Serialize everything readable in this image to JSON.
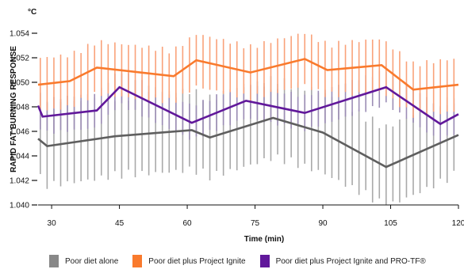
{
  "chart_data": {
    "type": "line",
    "ylabel": "RAPID FAT BURNING RESPONSE",
    "yunit": "°C",
    "xlabel": "Time (min)",
    "xlim": [
      27,
      120
    ],
    "ylim": [
      1.04,
      1.054
    ],
    "x_ticks": [
      "30",
      "45",
      "60",
      "75",
      "90",
      "105",
      "120"
    ],
    "y_ticks": [
      "1.040",
      "1.042",
      "1.044",
      "1.046",
      "1.048",
      "1.050",
      "1.052",
      "1.054"
    ],
    "x_tick_values": [
      30,
      45,
      60,
      75,
      90,
      105,
      120
    ],
    "y_tick_values": [
      1.04,
      1.042,
      1.044,
      1.046,
      1.048,
      1.05,
      1.052,
      1.054
    ],
    "error_bar_interval_min": 1.5,
    "error_bar_halfwidth": [
      0.0035,
      0.0023,
      0.0015
    ],
    "series": [
      {
        "name": "Poor diet alone",
        "color": "#5f5f5f",
        "bar_color": "#a9a9a9",
        "x": [
          27,
          29,
          44,
          61,
          65,
          79,
          90,
          104,
          120
        ],
        "y": [
          1.0454,
          1.0448,
          1.0456,
          1.0461,
          1.0455,
          1.0471,
          1.0459,
          1.0431,
          1.0457
        ]
      },
      {
        "name": "Poor diet plus Project Ignite",
        "color": "#f97a2d",
        "bar_color": "#f9a27a",
        "x": [
          27,
          34,
          40,
          57,
          62,
          74,
          86,
          91,
          103,
          110,
          120
        ],
        "y": [
          1.0498,
          1.0501,
          1.0512,
          1.0505,
          1.0518,
          1.0508,
          1.0519,
          1.051,
          1.0514,
          1.0494,
          1.0498
        ]
      },
      {
        "name": "Poor diet plus Project Ignite and PRO-TF®",
        "color": "#61189b",
        "bar_color": "#9c8db5",
        "x": [
          27,
          28,
          40,
          45,
          61,
          73,
          86,
          104,
          116,
          120
        ],
        "y": [
          1.0481,
          1.0472,
          1.0477,
          1.0496,
          1.0467,
          1.0485,
          1.0475,
          1.0496,
          1.0466,
          1.0474
        ]
      }
    ]
  },
  "legend": {
    "items": [
      {
        "label": "Poor diet alone",
        "color": "#888888"
      },
      {
        "label": "Poor diet plus Project Ignite",
        "color": "#f97a2d"
      },
      {
        "label": "Poor diet plus Project Ignite and PRO-TF®",
        "color": "#61189b"
      }
    ]
  }
}
